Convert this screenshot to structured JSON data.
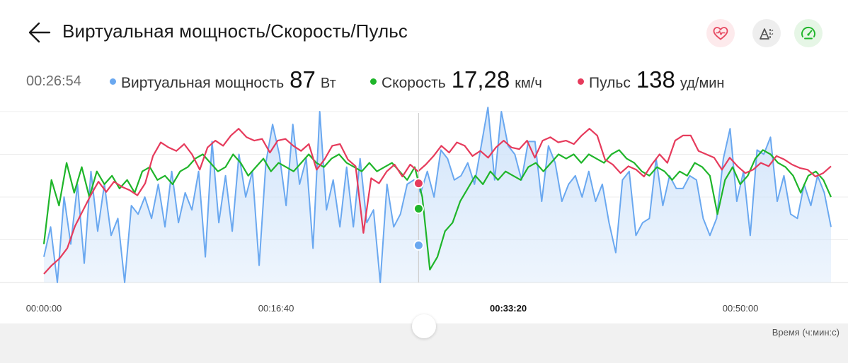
{
  "header": {
    "title": "Виртуальная мощность/Скорость/Пульс",
    "modes": [
      {
        "name": "heart-rate-mode",
        "icon": "heart-pulse-icon",
        "color": "#e6475f"
      },
      {
        "name": "terrain-mode",
        "icon": "terrain-icon",
        "color": "#555555"
      },
      {
        "name": "speed-mode",
        "icon": "speedometer-icon",
        "color": "#1fb52a"
      }
    ]
  },
  "readout": {
    "time": "00:26:54",
    "items": [
      {
        "label": "Виртуальная мощность",
        "value": "87",
        "unit": "Вт",
        "color": "#6aa8f0"
      },
      {
        "label": "Скорость",
        "value": "17,28",
        "unit": "км/ч",
        "color": "#1fb52a"
      },
      {
        "label": "Пульс",
        "value": "138",
        "unit": "уд/мин",
        "color": "#e63b5c"
      }
    ]
  },
  "chart_data": {
    "type": "line",
    "x_unit": "seconds",
    "x_range": [
      0,
      3390
    ],
    "x_tick_labels": [
      "00:00:00",
      "00:16:40",
      "00:33:20",
      "00:50:00"
    ],
    "x_ticks": [
      0,
      1000,
      2000,
      3000
    ],
    "xlabel": "Время (ч:мин:с)",
    "cursor_x": 1614,
    "grid": true,
    "series": [
      {
        "name": "Виртуальная мощность",
        "color": "#6aa8f0",
        "fill": "#cfe3fa",
        "style": "area",
        "ylim": [
          0,
          400
        ],
        "x_step": 60,
        "values": [
          60,
          130,
          0,
          200,
          90,
          230,
          45,
          260,
          120,
          230,
          110,
          150,
          0,
          180,
          160,
          200,
          150,
          230,
          130,
          260,
          140,
          210,
          170,
          260,
          60,
          330,
          140,
          250,
          120,
          300,
          200,
          260,
          40,
          280,
          370,
          300,
          180,
          370,
          230,
          290,
          80,
          400,
          170,
          240,
          130,
          270,
          130,
          290,
          140,
          170,
          0,
          230,
          130,
          160,
          230,
          240,
          210,
          260,
          200,
          310,
          290,
          240,
          250,
          280,
          230,
          320,
          410,
          240,
          400,
          320,
          300,
          240,
          330,
          330,
          190,
          320,
          280,
          190,
          230,
          250,
          200,
          260,
          190,
          230,
          140,
          70,
          240,
          260,
          110,
          140,
          150,
          290,
          180,
          250,
          220,
          220,
          250,
          240,
          150,
          110,
          150,
          290,
          360,
          190,
          260,
          110,
          310,
          300,
          340,
          190,
          250,
          160,
          150,
          230,
          180,
          250,
          210,
          130
        ],
        "spike_values": [
          0,
          0,
          0,
          0,
          0,
          0,
          0,
          0,
          0,
          0,
          0,
          0,
          0,
          0,
          0,
          0,
          0,
          0,
          0,
          0,
          0,
          0,
          0,
          0,
          0,
          0,
          0,
          0,
          0,
          0,
          0,
          0,
          0,
          0,
          0,
          0,
          0,
          0,
          0,
          0,
          0,
          0,
          0,
          0,
          0,
          0,
          0,
          0,
          0,
          0,
          0,
          0,
          0,
          0,
          0,
          0,
          0,
          0,
          0,
          0,
          0,
          0,
          0,
          0,
          0,
          0,
          0,
          0,
          0,
          0,
          0,
          0,
          0,
          0,
          0,
          0,
          0,
          0,
          0,
          0,
          0,
          0,
          0,
          0,
          0,
          0,
          0,
          0,
          0,
          0,
          0,
          0,
          0,
          0,
          0,
          0,
          0,
          0,
          0,
          0,
          0,
          0,
          0,
          0,
          0,
          0,
          0,
          0,
          0,
          0,
          0,
          0,
          0,
          0,
          0,
          0,
          0,
          0
        ]
      },
      {
        "name": "Скорость",
        "color": "#1fb52a",
        "style": "line",
        "ylim": [
          0,
          40
        ],
        "x_step": 60,
        "values": [
          9,
          24,
          18,
          28,
          21,
          27,
          20,
          26,
          23,
          25,
          22,
          24,
          21,
          26,
          27,
          24,
          25,
          23,
          26,
          27,
          29,
          30,
          28,
          26,
          27,
          30,
          28,
          25,
          27,
          29,
          26,
          28,
          27,
          26,
          28,
          30,
          28,
          27,
          29,
          30,
          28,
          27,
          26,
          28,
          26,
          27,
          28,
          26,
          24,
          27,
          20,
          3,
          6,
          12,
          14,
          19,
          22,
          25,
          23,
          26,
          24,
          26,
          25,
          24,
          27,
          28,
          26,
          28,
          30,
          29,
          30,
          28,
          30,
          29,
          28,
          30,
          31,
          29,
          28,
          26,
          25,
          27,
          26,
          24,
          26,
          25,
          28,
          27,
          25,
          16,
          24,
          27,
          23,
          25,
          29,
          31,
          30,
          28,
          27,
          25,
          21,
          25,
          26,
          24,
          20
        ],
        "spike_values": [
          0,
          0,
          0,
          0,
          0,
          0,
          0,
          0,
          0,
          0,
          0,
          0,
          0,
          0,
          0,
          0,
          0,
          0,
          0,
          0,
          0,
          0,
          0,
          0,
          0,
          0,
          0,
          0,
          0,
          0,
          0,
          0,
          0,
          0,
          0,
          0,
          0,
          0,
          0,
          0,
          0,
          0,
          0,
          0,
          0,
          0,
          0,
          0,
          0,
          0,
          0,
          0,
          0,
          0,
          0,
          0,
          0,
          0,
          0,
          0,
          0,
          0,
          0,
          0,
          0,
          0,
          0,
          0,
          0,
          0,
          0,
          0,
          0,
          0,
          0,
          0,
          0,
          0,
          0,
          0,
          0,
          0,
          0,
          0,
          0,
          0,
          0,
          0,
          0,
          0,
          0,
          0,
          0,
          0,
          0,
          0,
          0,
          0,
          0,
          0,
          0,
          0,
          0,
          0,
          0
        ]
      },
      {
        "name": "Пульс",
        "color": "#e63b5c",
        "style": "line",
        "ylim": [
          80,
          180
        ],
        "x_step": 60,
        "values": [
          85,
          90,
          94,
          100,
          113,
          122,
          131,
          139,
          133,
          139,
          136,
          134,
          131,
          138,
          154,
          162,
          159,
          157,
          161,
          155,
          146,
          159,
          163,
          160,
          166,
          170,
          165,
          163,
          164,
          156,
          163,
          164,
          160,
          157,
          161,
          146,
          152,
          160,
          161,
          152,
          148,
          109,
          141,
          138,
          145,
          149,
          142,
          149,
          145,
          149,
          154,
          160,
          156,
          162,
          160,
          154,
          157,
          153,
          159,
          163,
          159,
          158,
          163,
          153,
          163,
          165,
          162,
          163,
          161,
          166,
          170,
          166,
          152,
          149,
          144,
          148,
          146,
          142,
          149,
          155,
          150,
          163,
          166,
          166,
          157,
          155,
          153,
          146,
          153,
          148,
          144,
          146,
          150,
          148,
          154,
          152,
          149,
          147,
          146,
          142,
          144,
          148
        ],
        "spike_values": [
          0,
          0,
          0,
          0,
          0,
          0,
          0,
          0,
          0,
          0,
          0,
          0,
          0,
          0,
          0,
          0,
          0,
          0,
          0,
          0,
          0,
          0,
          0,
          0,
          0,
          0,
          0,
          0,
          0,
          0,
          0,
          0,
          0,
          0,
          0,
          0,
          0,
          0,
          0,
          0,
          0,
          0,
          0,
          0,
          0,
          0,
          0,
          0,
          0,
          0,
          0,
          0,
          0,
          0,
          0,
          0,
          0,
          0,
          0,
          0,
          0,
          0,
          0,
          0,
          0,
          0,
          0,
          0,
          0,
          0,
          0,
          0,
          0,
          0,
          0,
          0,
          0,
          0,
          0,
          0,
          0,
          0,
          0,
          0,
          0,
          0,
          0,
          0,
          0,
          0,
          0,
          0,
          0,
          0,
          0,
          0,
          0,
          0,
          0,
          0,
          0,
          0
        ]
      }
    ],
    "cursor_values": {
      "power": 87,
      "speed": 17.28,
      "pulse": 138
    }
  }
}
